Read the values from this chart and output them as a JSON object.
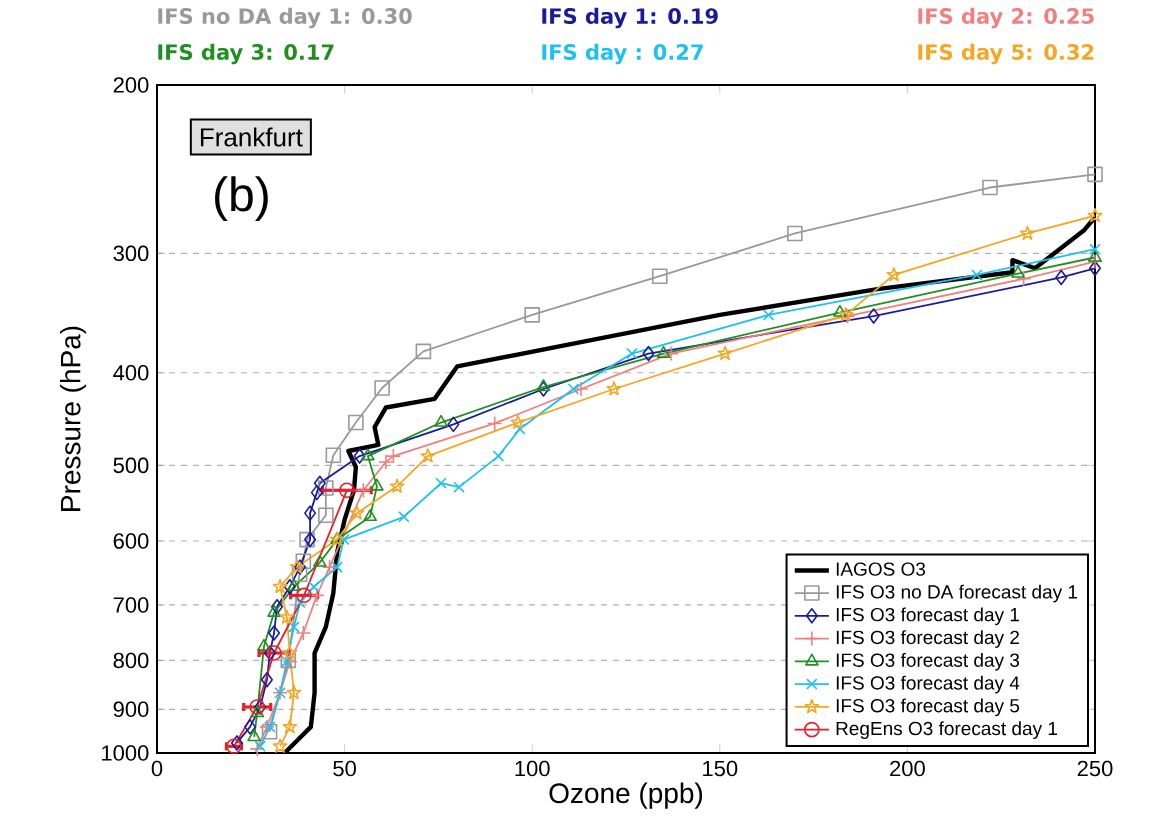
{
  "chart_data": {
    "type": "line",
    "xlabel": "Ozone (ppb)",
    "ylabel": "Pressure (hPa)",
    "annotations": [
      "IFS no DA day 1: 0.30",
      "IFS day 1: 0.19",
      "IFS day 2: 0.25",
      "IFS day 3: 0.17",
      "IFS day : 0.27",
      "IFS day 5: 0.32",
      "Frankfurt",
      "(b)"
    ],
    "xlim": [
      0,
      250
    ],
    "ylim": [
      1000,
      200
    ],
    "log": "y",
    "grid": "y",
    "legend": "bottom right",
    "line_style": "solid",
    "xticks": [
      0,
      50,
      100,
      150,
      200,
      250
    ],
    "yticks": [
      200,
      300,
      400,
      500,
      600,
      700,
      800,
      900,
      1000
    ],
    "series": [
      {
        "name": "IAGOS O3",
        "color": "#000000",
        "marker": "none",
        "x": [
          250,
          247,
          234,
          228,
          228,
          192,
          150,
          114,
          80,
          74,
          61,
          58,
          59,
          51,
          53,
          52.5,
          50,
          48,
          47,
          45,
          42,
          42,
          41,
          37.5,
          34
        ],
        "values": [
          275,
          284,
          311,
          305,
          314,
          327,
          348,
          371,
          394,
          426,
          435,
          456,
          476,
          483,
          502,
          531,
          570,
          617,
          680,
          738,
          786,
          865,
          939,
          969,
          1000
        ]
      },
      {
        "name": "IFS O3 no DA forecast day 1",
        "color": "#999999",
        "marker": "square",
        "x": [
          250,
          222,
          170,
          134,
          100,
          71,
          60,
          53,
          47,
          45,
          45,
          40,
          39,
          38,
          35,
          30
        ],
        "values": [
          248,
          256,
          286,
          317,
          348,
          380,
          415,
          451,
          488,
          528,
          564,
          598,
          630,
          650,
          800,
          950
        ]
      },
      {
        "name": "IFS O3 forecast day 1",
        "color": "#1a1a9c",
        "marker": "diamond",
        "x": [
          250,
          241,
          191,
          131,
          103,
          79,
          54,
          43.4,
          42.6,
          40.8,
          40.8,
          38.1,
          35.4,
          32,
          31.2,
          30.1,
          29.3,
          27.5,
          24.8,
          21.3
        ],
        "values": [
          311,
          318,
          349,
          382,
          416,
          453,
          489,
          522,
          534,
          561,
          598,
          639,
          670,
          703,
          749,
          786,
          838,
          895,
          939,
          976
        ]
      },
      {
        "name": "IFS O3 forecast day 2",
        "color": "#f08080",
        "marker": "plus",
        "x": [
          250,
          231,
          184,
          137,
          113,
          90,
          63,
          61,
          55,
          46,
          42.6,
          39,
          35.4,
          32.8,
          29.3,
          26.7
        ],
        "values": [
          306,
          319,
          349,
          382,
          416,
          452,
          489,
          496,
          531,
          639,
          684,
          749,
          802,
          865,
          939,
          990
        ]
      },
      {
        "name": "IFS O3 forecast day 3",
        "color": "#1f8f1f",
        "marker": "triangle",
        "x": [
          250,
          229.5,
          182,
          135,
          103,
          75.7,
          56.2,
          58.6,
          56.8,
          48,
          43.4,
          36.5,
          31.2,
          28.5,
          26.7,
          25.9
        ],
        "values": [
          303,
          315,
          346,
          382,
          414,
          451,
          489,
          526,
          566,
          598,
          632,
          670,
          713,
          774,
          908,
          962
        ]
      },
      {
        "name": "IFS O3 forecast day 4",
        "color": "#1ec0f0",
        "marker": "cross",
        "x": [
          250,
          218.5,
          163,
          126.6,
          111,
          96.7,
          91,
          80.5,
          75.7,
          65.8,
          49.8,
          48,
          41.8,
          38.1,
          36.5,
          34.6,
          32.8,
          30.1,
          27.5
        ],
        "values": [
          297,
          316,
          348,
          382,
          416,
          458,
          489,
          527,
          522,
          566,
          598,
          639,
          670,
          696,
          738,
          802,
          865,
          939,
          984
        ]
      },
      {
        "name": "IFS O3 forecast day 5",
        "color": "#f5a623",
        "marker": "star",
        "x": [
          250,
          232,
          196.4,
          183.6,
          151.4,
          121.8,
          96.2,
          72.2,
          64,
          53.3,
          48,
          37.3,
          32.8,
          34.6,
          35.4,
          36.5,
          35.4,
          32.8
        ],
        "values": [
          274,
          286,
          316,
          348,
          382,
          416,
          451,
          489,
          526,
          561,
          598,
          639,
          670,
          721,
          786,
          865,
          939,
          984
        ]
      },
      {
        "name": "RegEns O3 forecast day 1",
        "color": "#e8202a",
        "marker": "circle",
        "x": [
          50.6,
          39.2,
          31.2,
          26.7,
          20.5
        ],
        "values": [
          531,
          684,
          786,
          895,
          984
        ],
        "xerrors": [
          6.5,
          3.6,
          4,
          3.6,
          2
        ]
      }
    ]
  }
}
